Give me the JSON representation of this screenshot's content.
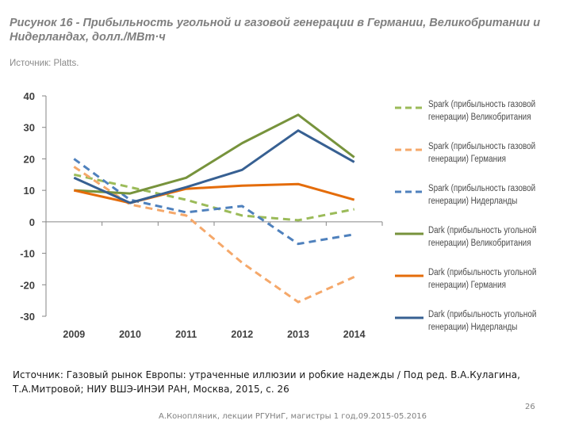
{
  "header": {
    "title": "Рисунок 16 - Прибыльность угольной и газовой генерации в Германии, Великобритании и Нидерландах, долл./МВт·ч",
    "source": "Источник: Platts."
  },
  "chart_data": {
    "type": "line",
    "x": [
      "2009",
      "2010",
      "2011",
      "2012",
      "2013",
      "2014"
    ],
    "ylim": [
      -30,
      40
    ],
    "yticks": [
      "40",
      "30",
      "20",
      "10",
      "0",
      "-10",
      "-20",
      "-30"
    ],
    "series": [
      {
        "name": "Spark (прибыльность газовой генерации) Великобритания",
        "values": [
          15,
          11,
          7,
          2,
          0.5,
          4
        ],
        "color": "#9bbb59",
        "dash": true
      },
      {
        "name": "Spark (прибыльность газовой генерации) Германия",
        "values": [
          17.5,
          5.5,
          2,
          -13,
          -25.5,
          -17.5
        ],
        "color": "#f5a86a",
        "dash": true
      },
      {
        "name": "Spark (прибыльность газовой генерации) Нидерланды",
        "values": [
          20,
          7,
          3,
          5,
          -7,
          -4
        ],
        "color": "#4f81bd",
        "dash": true
      },
      {
        "name": "Dark (прибыльность угольной генерации) Великобритания",
        "values": [
          10,
          9,
          14,
          25,
          34,
          20.5
        ],
        "color": "#77933c",
        "dash": false
      },
      {
        "name": "Dark (прибыльность угольной генерации) Германия",
        "values": [
          10,
          6,
          10.5,
          11.5,
          12,
          7
        ],
        "color": "#e46c0a",
        "dash": false
      },
      {
        "name": "Dark (прибыльность угольной генерации) Нидерланды",
        "values": [
          14,
          6,
          11,
          16.5,
          29,
          19
        ],
        "color": "#376092",
        "dash": false
      }
    ]
  },
  "legend": [
    {
      "line1": "Spark (прибыльность газовой",
      "line2": "генерации) Великобритания"
    },
    {
      "line1": "Spark (прибыльность газовой",
      "line2": "генерации) Германия"
    },
    {
      "line1": "Spark (прибыльность газовой",
      "line2": "генерации) Нидерланды"
    },
    {
      "line1": "Dark (прибыльность угольной",
      "line2": "генерации) Великобритания"
    },
    {
      "line1": "Dark (прибыльность угольной",
      "line2": "генерации) Германия"
    },
    {
      "line1": "Dark (прибыльность угольной",
      "line2": "генерации) Нидерланды"
    }
  ],
  "caption": "Источник: Газовый рынок Европы: утраченные иллюзии и робкие надежды / Под ред. В.А.Кулагина, Т.А.Митровой; НИУ ВШЭ-ИНЭИ РАН, Москва, 2015, с. 26",
  "footer": "А.Конопляник, лекции РГУНиГ, магистры 1 год,09.2015-05.2016",
  "page_number": "26"
}
